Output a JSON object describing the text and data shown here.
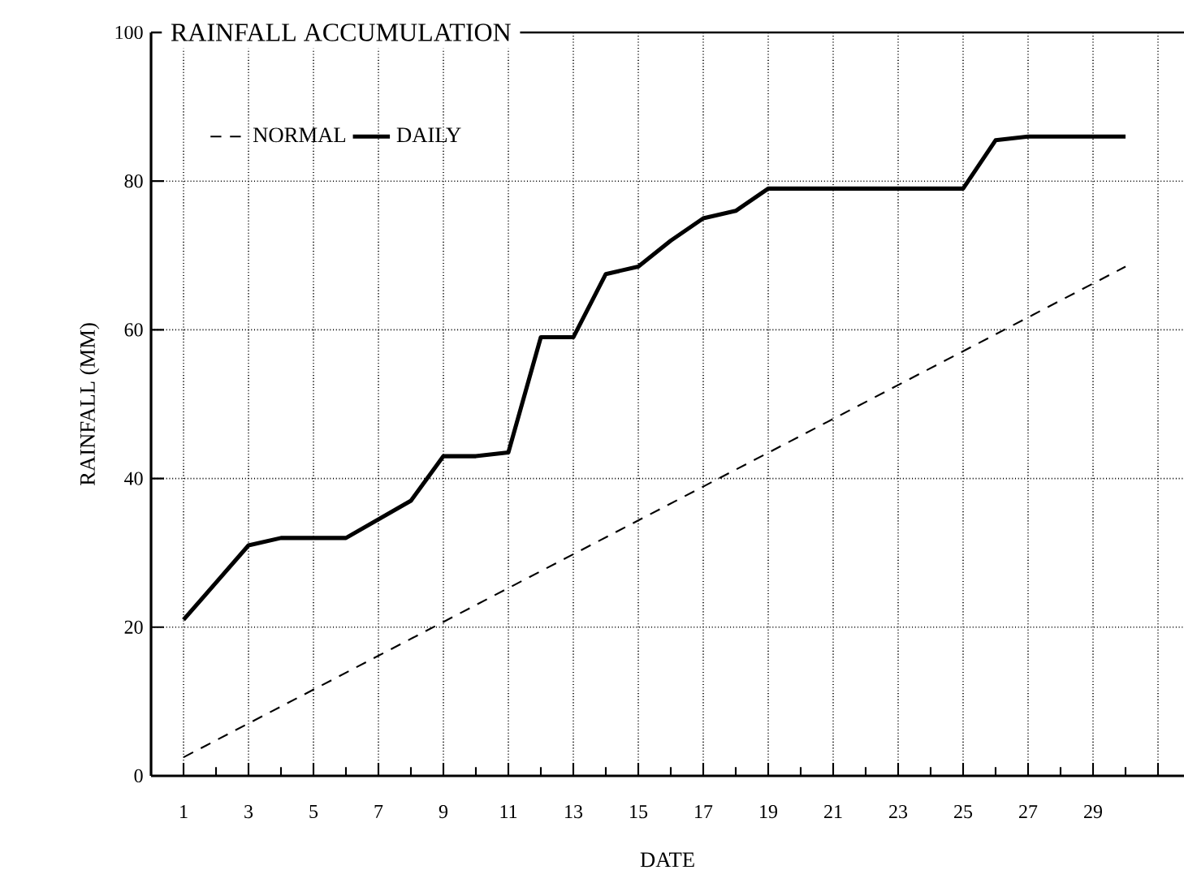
{
  "chart_data": {
    "type": "line",
    "title": "RAINFALL ACCUMULATION",
    "xlabel": "DATE",
    "ylabel": "RAINFALL (MM)",
    "xlim": [
      0,
      31.8
    ],
    "ylim": [
      0,
      100
    ],
    "xticks": [
      1,
      3,
      5,
      7,
      9,
      11,
      13,
      15,
      17,
      19,
      21,
      23,
      25,
      27,
      29,
      {
        "value": 31,
        "label": null
      }
    ],
    "yticks": [
      0,
      20,
      40,
      60,
      80,
      100
    ],
    "grid": true,
    "legend": "top left",
    "marker": "none",
    "series": [
      {
        "name": "NORMAL",
        "color": "#000000",
        "line_style": "dashed",
        "x": [
          1,
          30
        ],
        "values": [
          2.5,
          68.5
        ]
      },
      {
        "name": "DAILY",
        "color": "#000000",
        "line_style": "solid",
        "x": [
          1,
          2,
          3,
          4,
          5,
          6,
          7,
          8,
          9,
          10,
          11,
          12,
          13,
          14,
          15,
          16,
          17,
          18,
          19,
          20,
          21,
          22,
          23,
          24,
          25,
          26,
          27,
          28,
          29,
          30
        ],
        "values": [
          21,
          26,
          31,
          32,
          32,
          32,
          34.5,
          37,
          43,
          43,
          43.5,
          59,
          59,
          67.5,
          68.5,
          72,
          75,
          76,
          79,
          79,
          79,
          79,
          79,
          79,
          79,
          85.5,
          86,
          86,
          86,
          86
        ]
      }
    ]
  }
}
